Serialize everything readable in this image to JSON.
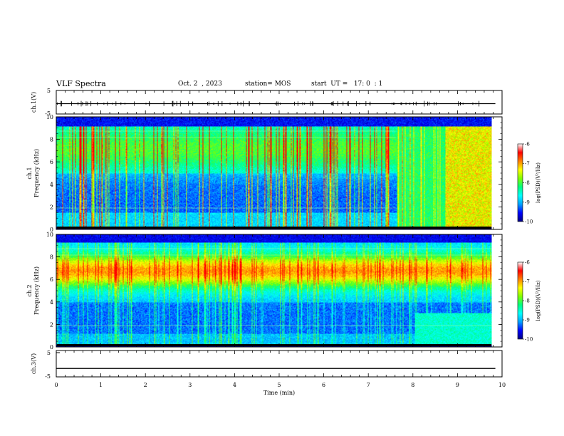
{
  "header": {
    "title": "VLF Spectra",
    "date": "Oct. 2  , 2023",
    "station": "station= MOS",
    "start": "start  UT =   17: 0  : 1"
  },
  "colors": {
    "colormap": [
      "#000080",
      "#0000ff",
      "#00a0ff",
      "#00ffff",
      "#00ff80",
      "#80ff00",
      "#ffff00",
      "#ff8000",
      "#ff0000",
      "#ffffff"
    ]
  },
  "chart_data": [
    {
      "type": "line",
      "panel": "ch1-waveform",
      "ylabel": "ch.1(V)",
      "ylim": [
        -5,
        5
      ],
      "yticks": [
        "5",
        "-5"
      ],
      "xlim": [
        0,
        10
      ],
      "series": [
        {
          "x": [
            0,
            9.85
          ],
          "y": [
            0,
            0
          ]
        }
      ]
    },
    {
      "type": "heatmap",
      "panel": "ch1-spectrogram",
      "ylabel_line1": "ch.1",
      "ylabel_line2": "Frequency (kHz)",
      "ylim": [
        0,
        10
      ],
      "yticks": [
        "0",
        "2",
        "4",
        "6",
        "8",
        "10"
      ],
      "xlim": [
        0,
        10
      ],
      "colorbar": {
        "label": "log(PSD)(V²/Hz)",
        "range": [
          -10,
          -6
        ],
        "ticks": [
          "-6",
          "-7",
          "-8",
          "-9",
          "-10"
        ]
      }
    },
    {
      "type": "heatmap",
      "panel": "ch2-spectrogram",
      "ylabel_line1": "ch.2",
      "ylabel_line2": "Frequency (kHz)",
      "ylim": [
        0,
        10
      ],
      "yticks": [
        "0",
        "2",
        "4",
        "6",
        "8",
        "10"
      ],
      "xlim": [
        0,
        10
      ],
      "colorbar": {
        "label": "log(PSD)(V²/Hz)",
        "range": [
          -10,
          -6
        ],
        "ticks": [
          "-6",
          "-7",
          "-8",
          "-9",
          "-10"
        ]
      }
    },
    {
      "type": "line",
      "panel": "ch3-waveform",
      "ylabel": "ch.3(V)",
      "ylim": [
        -5,
        5
      ],
      "yticks": [
        "5",
        "-5"
      ],
      "xlim": [
        0,
        10
      ],
      "xlabel": "Time  (min)",
      "xticks": [
        "0",
        "1",
        "2",
        "3",
        "4",
        "5",
        "6",
        "7",
        "8",
        "9",
        "10"
      ],
      "series": [
        {
          "x": [
            0,
            9.85
          ],
          "y": [
            -1,
            -1
          ]
        }
      ]
    }
  ]
}
